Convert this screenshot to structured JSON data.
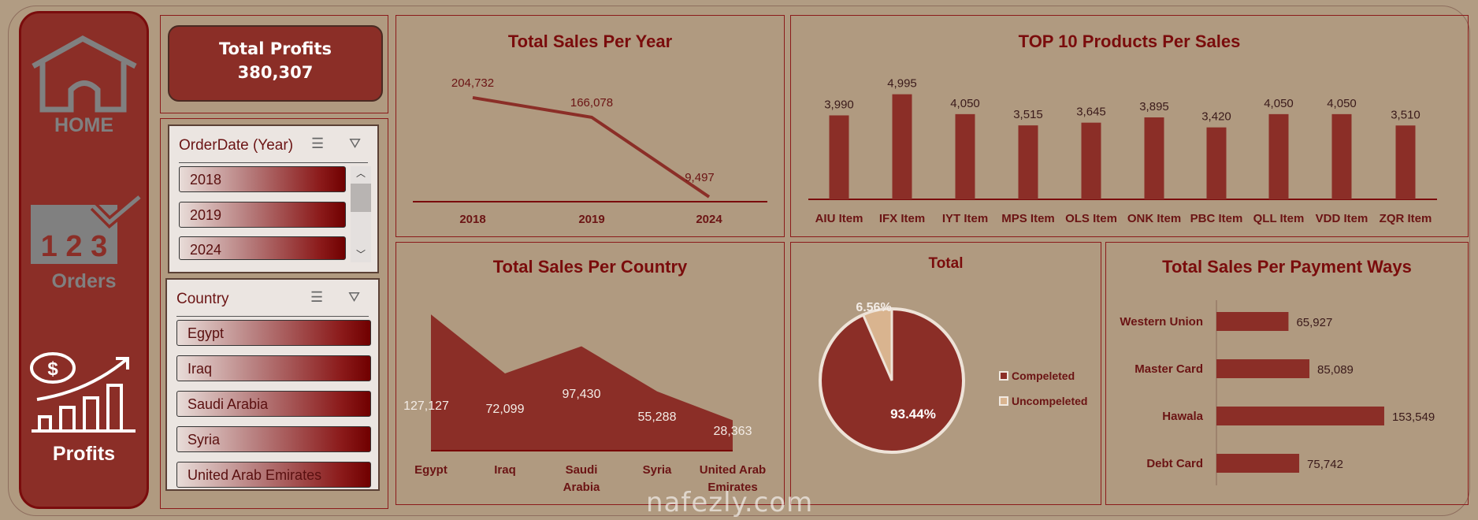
{
  "nav": {
    "home": "HOME",
    "orders_digits": "1 2 3",
    "orders": "Orders",
    "profits": "Profits",
    "dollar": "$"
  },
  "kpi": {
    "title": "Total Profits",
    "value": "380,307"
  },
  "year_slicer": {
    "title": "OrderDate (Year)",
    "items": [
      "2018",
      "2019",
      "2024"
    ]
  },
  "country_slicer": {
    "title": "Country",
    "items": [
      "Egypt",
      "Iraq",
      "Saudi Arabia",
      "Syria",
      "United Arab Emirates"
    ]
  },
  "colors": {
    "primary": "#8b2e27",
    "border": "#8b1a1a",
    "bg": "#b09a80",
    "light": "#d9b48f"
  },
  "watermark": "nafezly.com",
  "chart_data": [
    {
      "type": "line",
      "title": "Total Sales Per Year",
      "categories": [
        "2018",
        "2019",
        "2024"
      ],
      "values": [
        204732,
        166078,
        9497
      ],
      "labels": [
        "204,732",
        "166,078",
        "9,497"
      ]
    },
    {
      "type": "bar",
      "title": "TOP 10 Products Per Sales",
      "categories": [
        "AIU Item",
        "IFX Item",
        "IYT Item",
        "MPS Item",
        "OLS Item",
        "ONK Item",
        "PBC Item",
        "QLL Item",
        "VDD Item",
        "ZQR Item"
      ],
      "values": [
        3990,
        4995,
        4050,
        3515,
        3645,
        3895,
        3420,
        4050,
        4050,
        3510
      ],
      "labels": [
        "3,990",
        "4,995",
        "4,050",
        "3,515",
        "3,645",
        "3,895",
        "3,420",
        "4,050",
        "4,050",
        "3,510"
      ]
    },
    {
      "type": "area",
      "title": "Total Sales Per Country",
      "categories": [
        "Egypt",
        "Iraq",
        "Saudi Arabia",
        "Syria",
        "United Arab Emirates"
      ],
      "category_lines": [
        [
          "Egypt"
        ],
        [
          "Iraq"
        ],
        [
          "Saudi",
          "Arabia"
        ],
        [
          "Syria"
        ],
        [
          "United Arab",
          "Emirates"
        ]
      ],
      "values": [
        127127,
        72099,
        97430,
        55288,
        28363
      ],
      "labels": [
        "127,127",
        "72,099",
        "97,430",
        "55,288",
        "28,363"
      ]
    },
    {
      "type": "pie",
      "title": "Total",
      "categories": [
        "Compeleted",
        "Uncompeleted"
      ],
      "values": [
        93.44,
        6.56
      ],
      "labels": [
        "93.44%",
        "6.56%"
      ]
    },
    {
      "type": "bar",
      "orientation": "horizontal",
      "title": "Total Sales Per Payment Ways",
      "categories": [
        "Western Union",
        "Master Card",
        "Hawala",
        "Debt Card"
      ],
      "values": [
        65927,
        85089,
        153549,
        75742
      ],
      "labels": [
        "65,927",
        "85,089",
        "153,549",
        "75,742"
      ]
    }
  ]
}
